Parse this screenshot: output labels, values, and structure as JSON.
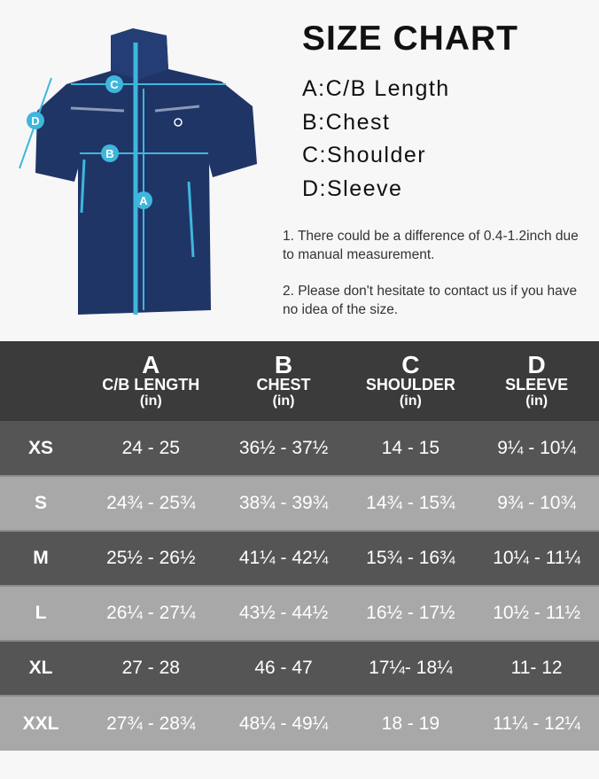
{
  "title": "SIZE CHART",
  "legend": [
    "A:C/B Length",
    "B:Chest",
    "C:Shoulder",
    "D:Sleeve"
  ],
  "notes": [
    "1. There could be a difference of 0.4-1.2inch due to manual measurement.",
    "2. Please don't hesitate to contact us if you have no idea of the size."
  ],
  "diagram_labels": {
    "a": "A",
    "b": "B",
    "c": "C",
    "d": "D"
  },
  "colors": {
    "jacket": "#1f3566",
    "accent": "#3fb6dc",
    "header": "#3b3b3b",
    "row_dark": "#555555",
    "row_light": "#a8a8a8"
  },
  "table": {
    "headers": [
      {
        "letter": "A",
        "name": "C/B LENGTH",
        "unit": "(in)"
      },
      {
        "letter": "B",
        "name": "CHEST",
        "unit": "(in)"
      },
      {
        "letter": "C",
        "name": "SHOULDER",
        "unit": "(in)"
      },
      {
        "letter": "D",
        "name": "SLEEVE",
        "unit": "(in)"
      }
    ],
    "rows": [
      {
        "size": "XS",
        "values": [
          "24 - 25",
          "36½ - 37½",
          "14 - 15",
          "9¼ - 10¼"
        ]
      },
      {
        "size": "S",
        "values": [
          "24¾ - 25¾",
          "38¾ - 39¾",
          "14¾ - 15¾",
          "9¾ - 10¾"
        ]
      },
      {
        "size": "M",
        "values": [
          "25½ - 26½",
          "41¼ - 42¼",
          "15¾ - 16¾",
          "10¼ - 11¼"
        ]
      },
      {
        "size": "L",
        "values": [
          "26¼ - 27¼",
          "43½ - 44½",
          "16½ - 17½",
          "10½ - 11½"
        ]
      },
      {
        "size": "XL",
        "values": [
          "27 - 28",
          "46 - 47",
          "17¼- 18¼",
          "11- 12"
        ]
      },
      {
        "size": "XXL",
        "values": [
          "27¾ - 28¾",
          "48¼ - 49¼",
          "18 - 19",
          "11¼ - 12¼"
        ]
      }
    ]
  }
}
